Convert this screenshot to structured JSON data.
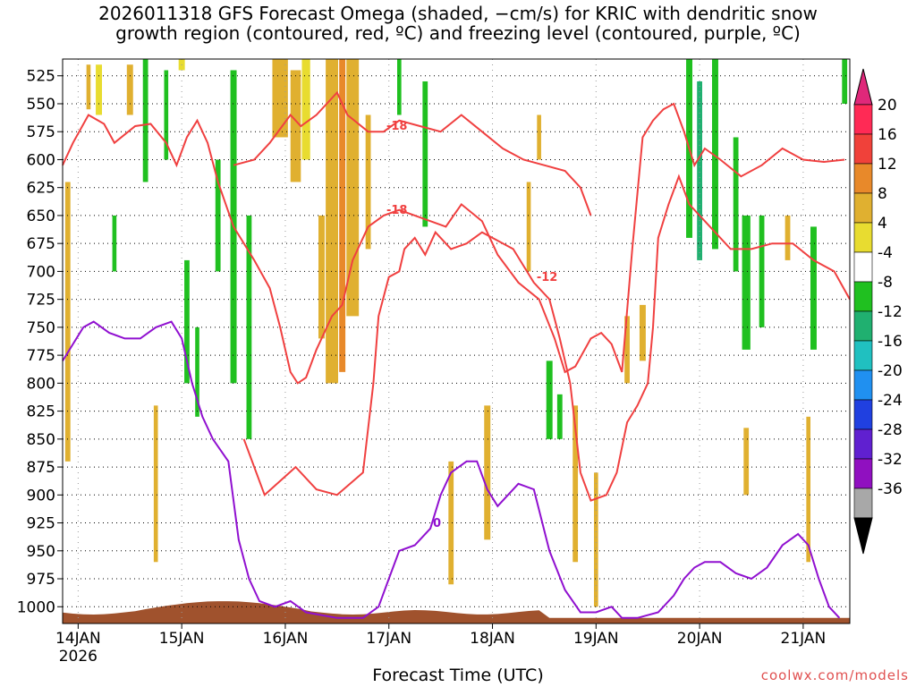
{
  "title_line1": "2026011318 GFS Forecast Omega (shaded, −cm/s) for KRIC with dendritic snow",
  "title_line2": "growth region (contoured, red, ºC) and freezing level (contoured, purple, ºC)",
  "xlabel": "Forecast Time (UTC)",
  "credit": "coolwx.com/models",
  "chart_data": {
    "type": "heatmap",
    "yaxis": {
      "levels": [
        525,
        550,
        575,
        600,
        625,
        650,
        675,
        700,
        725,
        750,
        775,
        800,
        825,
        850,
        875,
        900,
        925,
        950,
        975,
        1000
      ],
      "range": [
        510,
        1015
      ]
    },
    "xaxis": {
      "range_hours": [
        13.85,
        21.45
      ],
      "ticks": [
        {
          "label": "14JAN",
          "sublabel": "2026",
          "t": 14
        },
        {
          "label": "15JAN",
          "t": 15
        },
        {
          "label": "16JAN",
          "t": 16
        },
        {
          "label": "17JAN",
          "t": 17
        },
        {
          "label": "18JAN",
          "t": 18
        },
        {
          "label": "19JAN",
          "t": 19
        },
        {
          "label": "20JAN",
          "t": 20
        },
        {
          "label": "21JAN",
          "t": 21
        }
      ]
    },
    "colorbar": {
      "labels": [
        "20",
        "16",
        "12",
        "8",
        "4",
        "-4",
        "-8",
        "-12",
        "-16",
        "-20",
        "-24",
        "-28",
        "-32",
        "-36"
      ],
      "colors": [
        "#ff2a55",
        "#f0413a",
        "#e8892a",
        "#e0b030",
        "#e8dc30",
        "#ffffff",
        "#20c020",
        "#20b070",
        "#20c0c0",
        "#2090f0",
        "#2040e0",
        "#6020d0",
        "#9010c0",
        "#a8a8a8",
        "#000000"
      ],
      "top_color": "#e0287a"
    },
    "contours": [
      {
        "label": "-18",
        "color": "#f04040",
        "points": [
          [
            13.85,
            605
          ],
          [
            13.95,
            585
          ],
          [
            14.1,
            560
          ],
          [
            14.25,
            568
          ],
          [
            14.35,
            585
          ],
          [
            14.55,
            570
          ],
          [
            14.7,
            568
          ],
          [
            14.85,
            585
          ],
          [
            14.95,
            605
          ],
          [
            15.05,
            580
          ],
          [
            15.15,
            565
          ],
          [
            15.25,
            585
          ],
          [
            15.35,
            620
          ],
          [
            15.5,
            660
          ],
          [
            15.7,
            690
          ],
          [
            15.85,
            715
          ],
          [
            15.95,
            750
          ],
          [
            16.05,
            790
          ],
          [
            16.12,
            800
          ],
          [
            16.2,
            795
          ],
          [
            16.3,
            770
          ],
          [
            16.45,
            740
          ],
          [
            16.55,
            730
          ],
          [
            16.65,
            690
          ],
          [
            16.8,
            660
          ],
          [
            16.95,
            650
          ],
          [
            17.1,
            645
          ],
          [
            17.25,
            650
          ],
          [
            17.4,
            655
          ],
          [
            17.55,
            660
          ],
          [
            17.7,
            640
          ],
          [
            17.9,
            655
          ],
          [
            18.05,
            685
          ],
          [
            18.25,
            710
          ],
          [
            18.45,
            725
          ],
          [
            18.6,
            760
          ],
          [
            18.7,
            790
          ],
          [
            18.8,
            785
          ],
          [
            18.95,
            760
          ],
          [
            19.05,
            755
          ],
          [
            19.15,
            765
          ],
          [
            19.25,
            790
          ],
          [
            19.35,
            680
          ],
          [
            19.45,
            580
          ],
          [
            19.55,
            565
          ],
          [
            19.65,
            555
          ],
          [
            19.75,
            550
          ],
          [
            19.85,
            575
          ],
          [
            19.95,
            605
          ],
          [
            20.05,
            590
          ],
          [
            20.2,
            600
          ],
          [
            20.4,
            615
          ],
          [
            20.6,
            605
          ],
          [
            20.8,
            590
          ],
          [
            21.0,
            600
          ],
          [
            21.2,
            602
          ],
          [
            21.4,
            600
          ]
        ]
      },
      {
        "label": "-18",
        "color": "#f04040",
        "points": [
          [
            15.5,
            605
          ],
          [
            15.7,
            600
          ],
          [
            15.85,
            585
          ],
          [
            16.05,
            560
          ],
          [
            16.15,
            570
          ],
          [
            16.3,
            560
          ],
          [
            16.5,
            540
          ],
          [
            16.6,
            560
          ],
          [
            16.8,
            575
          ],
          [
            16.95,
            575
          ],
          [
            17.1,
            565
          ],
          [
            17.3,
            570
          ],
          [
            17.5,
            575
          ],
          [
            17.7,
            560
          ],
          [
            17.9,
            575
          ],
          [
            18.1,
            590
          ],
          [
            18.3,
            600
          ],
          [
            18.5,
            605
          ],
          [
            18.7,
            610
          ],
          [
            18.85,
            625
          ],
          [
            18.95,
            650
          ]
        ]
      },
      {
        "label": "-12",
        "color": "#f04040",
        "points": [
          [
            15.6,
            850
          ],
          [
            15.8,
            900
          ],
          [
            16.1,
            875
          ],
          [
            16.3,
            895
          ],
          [
            16.5,
            900
          ],
          [
            16.75,
            880
          ],
          [
            16.85,
            800
          ],
          [
            16.9,
            740
          ],
          [
            17.0,
            705
          ],
          [
            17.1,
            700
          ],
          [
            17.15,
            680
          ],
          [
            17.25,
            670
          ],
          [
            17.35,
            685
          ],
          [
            17.45,
            665
          ],
          [
            17.6,
            680
          ],
          [
            17.75,
            675
          ],
          [
            17.9,
            665
          ],
          [
            18.0,
            670
          ],
          [
            18.2,
            680
          ],
          [
            18.4,
            710
          ],
          [
            18.55,
            725
          ],
          [
            18.65,
            760
          ],
          [
            18.75,
            800
          ],
          [
            18.85,
            880
          ],
          [
            18.95,
            905
          ],
          [
            19.1,
            900
          ],
          [
            19.2,
            880
          ],
          [
            19.3,
            835
          ],
          [
            19.4,
            820
          ],
          [
            19.5,
            800
          ],
          [
            19.55,
            750
          ],
          [
            19.6,
            670
          ],
          [
            19.7,
            640
          ],
          [
            19.8,
            615
          ],
          [
            19.9,
            640
          ],
          [
            20.0,
            650
          ],
          [
            20.15,
            665
          ],
          [
            20.3,
            680
          ],
          [
            20.5,
            680
          ],
          [
            20.7,
            675
          ],
          [
            20.9,
            675
          ],
          [
            21.1,
            690
          ],
          [
            21.3,
            700
          ],
          [
            21.45,
            725
          ]
        ]
      },
      {
        "label": "0",
        "color": "#9010d0",
        "points": [
          [
            13.85,
            780
          ],
          [
            13.95,
            765
          ],
          [
            14.05,
            750
          ],
          [
            14.15,
            745
          ],
          [
            14.3,
            755
          ],
          [
            14.45,
            760
          ],
          [
            14.6,
            760
          ],
          [
            14.75,
            750
          ],
          [
            14.9,
            745
          ],
          [
            15.0,
            760
          ],
          [
            15.1,
            800
          ],
          [
            15.2,
            830
          ],
          [
            15.3,
            850
          ],
          [
            15.45,
            870
          ],
          [
            15.55,
            940
          ],
          [
            15.65,
            975
          ],
          [
            15.75,
            995
          ],
          [
            15.9,
            1000
          ],
          [
            16.05,
            995
          ],
          [
            16.2,
            1005
          ],
          [
            16.5,
            1010
          ],
          [
            16.75,
            1010
          ],
          [
            16.9,
            1000
          ],
          [
            17.0,
            975
          ],
          [
            17.1,
            950
          ],
          [
            17.25,
            945
          ],
          [
            17.4,
            930
          ],
          [
            17.5,
            900
          ],
          [
            17.6,
            880
          ],
          [
            17.75,
            870
          ],
          [
            17.85,
            870
          ],
          [
            17.95,
            895
          ],
          [
            18.05,
            910
          ],
          [
            18.15,
            900
          ],
          [
            18.25,
            890
          ],
          [
            18.4,
            895
          ],
          [
            18.55,
            950
          ],
          [
            18.7,
            985
          ],
          [
            18.85,
            1005
          ],
          [
            19.0,
            1005
          ],
          [
            19.15,
            1000
          ],
          [
            19.25,
            1010
          ],
          [
            19.4,
            1010
          ],
          [
            19.6,
            1005
          ],
          [
            19.75,
            990
          ],
          [
            19.85,
            975
          ],
          [
            19.95,
            965
          ],
          [
            20.05,
            960
          ],
          [
            20.2,
            960
          ],
          [
            20.35,
            970
          ],
          [
            20.5,
            975
          ],
          [
            20.65,
            965
          ],
          [
            20.8,
            945
          ],
          [
            20.95,
            935
          ],
          [
            21.05,
            945
          ],
          [
            21.15,
            975
          ],
          [
            21.25,
            1000
          ],
          [
            21.35,
            1010
          ]
        ]
      }
    ],
    "omega_streaks": [
      {
        "t": 14.1,
        "p0": 515,
        "p1": 555,
        "c": 3,
        "w": 0.04
      },
      {
        "t": 14.2,
        "p0": 515,
        "p1": 560,
        "c": 4,
        "w": 0.06
      },
      {
        "t": 14.5,
        "p0": 515,
        "p1": 560,
        "c": 3,
        "w": 0.06
      },
      {
        "t": 13.9,
        "p0": 620,
        "p1": 870,
        "c": 3,
        "w": 0.05
      },
      {
        "t": 14.35,
        "p0": 650,
        "p1": 700,
        "c": 6,
        "w": 0.04
      },
      {
        "t": 14.65,
        "p0": 510,
        "p1": 620,
        "c": 6,
        "w": 0.05
      },
      {
        "t": 14.85,
        "p0": 520,
        "p1": 600,
        "c": 6,
        "w": 0.04
      },
      {
        "t": 15.0,
        "p0": 510,
        "p1": 520,
        "c": 4,
        "w": 0.06
      },
      {
        "t": 15.05,
        "p0": 690,
        "p1": 800,
        "c": 6,
        "w": 0.05
      },
      {
        "t": 15.15,
        "p0": 750,
        "p1": 830,
        "c": 6,
        "w": 0.04
      },
      {
        "t": 15.35,
        "p0": 600,
        "p1": 700,
        "c": 6,
        "w": 0.05
      },
      {
        "t": 15.5,
        "p0": 520,
        "p1": 800,
        "c": 6,
        "w": 0.06
      },
      {
        "t": 15.65,
        "p0": 650,
        "p1": 850,
        "c": 6,
        "w": 0.05
      },
      {
        "t": 14.75,
        "p0": 820,
        "p1": 960,
        "c": 3,
        "w": 0.04
      },
      {
        "t": 15.95,
        "p0": 510,
        "p1": 580,
        "c": 3,
        "w": 0.15
      },
      {
        "t": 16.1,
        "p0": 520,
        "p1": 620,
        "c": 3,
        "w": 0.1
      },
      {
        "t": 16.2,
        "p0": 510,
        "p1": 600,
        "c": 4,
        "w": 0.08
      },
      {
        "t": 16.35,
        "p0": 650,
        "p1": 760,
        "c": 3,
        "w": 0.06
      },
      {
        "t": 16.45,
        "p0": 510,
        "p1": 800,
        "c": 3,
        "w": 0.12
      },
      {
        "t": 16.55,
        "p0": 510,
        "p1": 790,
        "c": 2,
        "w": 0.06
      },
      {
        "t": 16.65,
        "p0": 510,
        "p1": 740,
        "c": 3,
        "w": 0.12
      },
      {
        "t": 16.8,
        "p0": 560,
        "p1": 680,
        "c": 3,
        "w": 0.05
      },
      {
        "t": 17.1,
        "p0": 510,
        "p1": 560,
        "c": 6,
        "w": 0.04
      },
      {
        "t": 17.35,
        "p0": 530,
        "p1": 660,
        "c": 6,
        "w": 0.05
      },
      {
        "t": 18.35,
        "p0": 620,
        "p1": 700,
        "c": 3,
        "w": 0.04
      },
      {
        "t": 18.45,
        "p0": 560,
        "p1": 600,
        "c": 3,
        "w": 0.04
      },
      {
        "t": 18.55,
        "p0": 780,
        "p1": 850,
        "c": 6,
        "w": 0.06
      },
      {
        "t": 18.65,
        "p0": 810,
        "p1": 850,
        "c": 6,
        "w": 0.05
      },
      {
        "t": 18.8,
        "p0": 820,
        "p1": 960,
        "c": 3,
        "w": 0.05
      },
      {
        "t": 19.0,
        "p0": 880,
        "p1": 1000,
        "c": 3,
        "w": 0.04
      },
      {
        "t": 19.3,
        "p0": 740,
        "p1": 800,
        "c": 3,
        "w": 0.05
      },
      {
        "t": 19.45,
        "p0": 730,
        "p1": 780,
        "c": 3,
        "w": 0.06
      },
      {
        "t": 19.9,
        "p0": 510,
        "p1": 670,
        "c": 6,
        "w": 0.06
      },
      {
        "t": 20.0,
        "p0": 530,
        "p1": 690,
        "c": 7,
        "w": 0.05
      },
      {
        "t": 20.15,
        "p0": 510,
        "p1": 680,
        "c": 6,
        "w": 0.06
      },
      {
        "t": 20.35,
        "p0": 580,
        "p1": 700,
        "c": 6,
        "w": 0.05
      },
      {
        "t": 20.45,
        "p0": 650,
        "p1": 770,
        "c": 6,
        "w": 0.08
      },
      {
        "t": 20.6,
        "p0": 650,
        "p1": 750,
        "c": 6,
        "w": 0.05
      },
      {
        "t": 20.85,
        "p0": 650,
        "p1": 690,
        "c": 3,
        "w": 0.05
      },
      {
        "t": 21.1,
        "p0": 660,
        "p1": 770,
        "c": 6,
        "w": 0.06
      },
      {
        "t": 21.4,
        "p0": 510,
        "p1": 550,
        "c": 6,
        "w": 0.05
      },
      {
        "t": 20.45,
        "p0": 840,
        "p1": 900,
        "c": 3,
        "w": 0.05
      },
      {
        "t": 21.05,
        "p0": 830,
        "p1": 960,
        "c": 3,
        "w": 0.04
      },
      {
        "t": 17.95,
        "p0": 820,
        "p1": 940,
        "c": 3,
        "w": 0.06
      },
      {
        "t": 17.6,
        "p0": 870,
        "p1": 980,
        "c": 3,
        "w": 0.05
      }
    ]
  }
}
